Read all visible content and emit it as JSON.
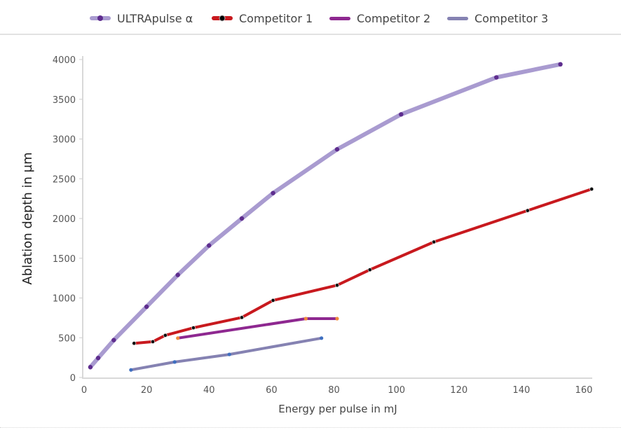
{
  "chart_data": {
    "type": "line",
    "title": "",
    "xlabel": "Energy per pulse in mJ",
    "ylabel": "Ablation depth in µm",
    "xlim": [
      0,
      162.7
    ],
    "ylim": [
      0,
      4000
    ],
    "xticks": [
      0,
      20,
      40,
      60,
      80,
      100,
      120,
      140,
      160
    ],
    "yticks": [
      0,
      500,
      1000,
      1500,
      2000,
      2500,
      3000,
      3500,
      4000
    ],
    "grid": false,
    "legend_position": "top",
    "series": [
      {
        "name": "ULTRApulse α",
        "line_color": "#a99bd0",
        "marker_color": "#5e2d8e",
        "line_width": 6,
        "x": [
          2,
          4.5,
          9.5,
          20,
          30,
          40,
          50.5,
          60.5,
          81,
          101.5,
          132,
          152.5
        ],
        "y": [
          130,
          245,
          470,
          890,
          1290,
          1660,
          2000,
          2320,
          2870,
          3310,
          3775,
          3940
        ]
      },
      {
        "name": "Competitor 1",
        "line_color": "#c8191e",
        "marker_color": "#000000",
        "line_width": 4,
        "x": [
          16,
          22,
          26,
          35,
          50.5,
          60.5,
          81,
          91.5,
          112,
          142,
          162.5
        ],
        "y": [
          430,
          450,
          530,
          625,
          755,
          970,
          1160,
          1355,
          1705,
          2100,
          2370
        ]
      },
      {
        "name": "Competitor 2",
        "line_color": "#8e2890",
        "marker_color": "#f08a3c",
        "line_width": 4,
        "x": [
          30,
          71,
          81
        ],
        "y": [
          495,
          740,
          740
        ]
      },
      {
        "name": "Competitor 3",
        "line_color": "#8582b2",
        "marker_color": "#3f6fc0",
        "line_width": 4,
        "x": [
          15,
          29,
          46.5,
          76
        ],
        "y": [
          95,
          195,
          290,
          495
        ]
      }
    ]
  },
  "legend": {
    "items": [
      {
        "label": "ULTRApulse α",
        "color": "#a99bd0",
        "marker": "#5e2d8e"
      },
      {
        "label": "Competitor 1",
        "color": "#c8191e",
        "marker": "#000000"
      },
      {
        "label": "Competitor 2",
        "color": "#8e2890",
        "marker": null
      },
      {
        "label": "Competitor 3",
        "color": "#8582b2",
        "marker": null
      }
    ]
  }
}
